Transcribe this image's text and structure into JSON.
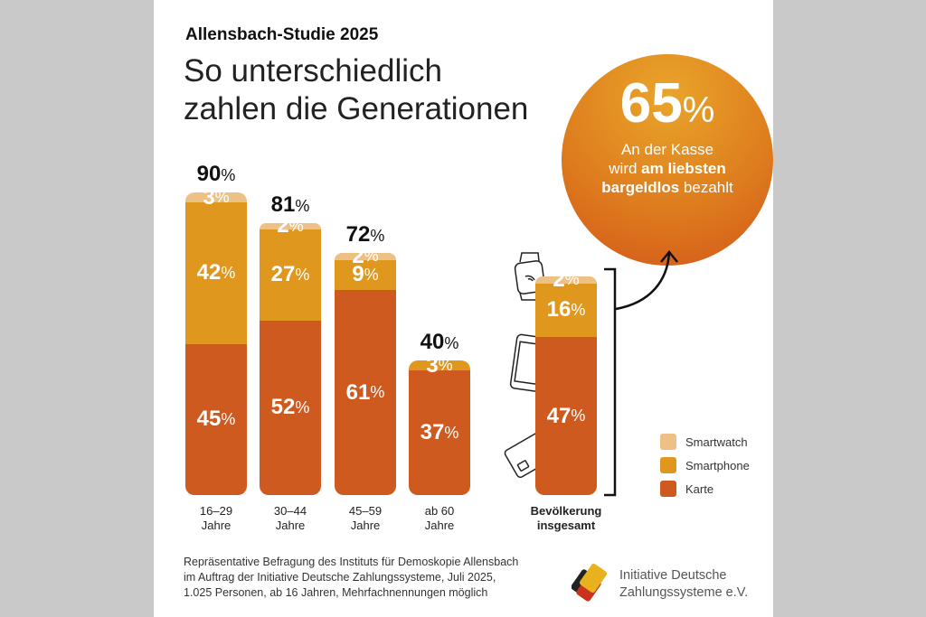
{
  "header": {
    "kicker": "Allensbach-Studie 2025",
    "title_line1": "So unterschiedlich",
    "title_line2": "zahlen die Generationen"
  },
  "highlight": {
    "value": "65",
    "unit": "%",
    "line1": "An der Kasse",
    "line2_pre": "wird ",
    "line2_bold": "am liebsten",
    "line3_bold": "bargeldlos",
    "line3_post": " bezahlt"
  },
  "colors": {
    "Smartwatch": "#edc085",
    "Smartphone": "#e0971e",
    "Karte": "#ce5a1f",
    "background": "#c9c9c9"
  },
  "chart_data": {
    "type": "bar",
    "stacked": true,
    "unit": "%",
    "categories": [
      [
        "16–29",
        "Jahre"
      ],
      [
        "30–44",
        "Jahre"
      ],
      [
        "45–59",
        "Jahre"
      ],
      [
        "ab 60",
        "Jahre"
      ],
      [
        "Bevölkerung",
        "insgesamt"
      ]
    ],
    "series": [
      {
        "name": "Karte",
        "values": [
          45,
          52,
          61,
          37,
          47
        ]
      },
      {
        "name": "Smartphone",
        "values": [
          42,
          27,
          9,
          3,
          16
        ]
      },
      {
        "name": "Smartwatch",
        "values": [
          3,
          2,
          2,
          0,
          2
        ]
      }
    ],
    "totals": [
      90,
      81,
      72,
      40,
      65
    ],
    "legend": "right",
    "icons": [
      "smartwatch-icon",
      "smartphone-icon",
      "card-icon"
    ]
  },
  "legend": [
    "Smartwatch",
    "Smartphone",
    "Karte"
  ],
  "footer": {
    "source": [
      "Repräsentative Befragung des Instituts für Demoskopie Allensbach",
      "im Auftrag der Initiative Deutsche Zahlungssysteme, Juli 2025,",
      "1.025 Personen, ab 16 Jahren, Mehrfachnennungen möglich"
    ],
    "org_line1": "Initiative Deutsche",
    "org_line2": "Zahlungssysteme e.V."
  }
}
